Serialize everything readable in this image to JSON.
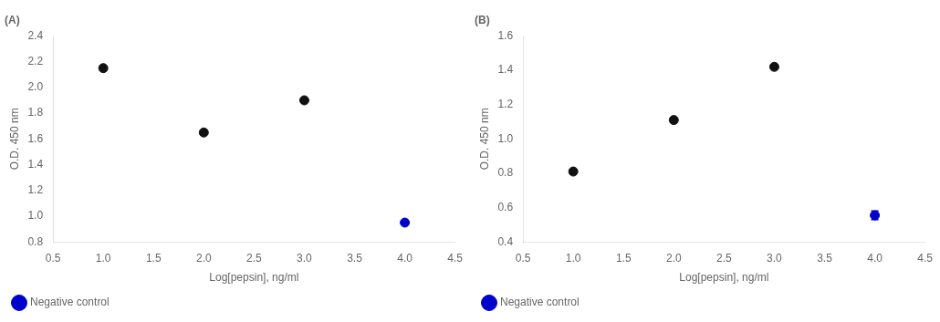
{
  "chart_data": [
    {
      "type": "scatter",
      "title": "(A)",
      "x_label": "Log[pepsin], ng/ml",
      "y_label": "O.D. 450 nm",
      "series": [
        {
          "color": "#111111",
          "x": [
            1.0,
            2.0,
            3.0
          ],
          "values": [
            2.15,
            1.65,
            1.9
          ]
        },
        {
          "name": "Negative control",
          "color": "#0000cc",
          "x": [
            4.0
          ],
          "values": [
            0.95
          ]
        }
      ],
      "xlim": [
        0.5,
        4.5
      ],
      "xticks": [
        0.5,
        {
          "value": 1.0,
          "label": "1.0"
        },
        1.5,
        {
          "value": 2.0,
          "label": "2.0"
        },
        2.5,
        {
          "value": 3.0,
          "label": "3.0"
        },
        3.5,
        {
          "value": 4.0,
          "label": "4.0"
        },
        4.5
      ],
      "ylim": [
        0.8,
        2.4
      ],
      "yticks": [
        0.8,
        {
          "value": 1.0,
          "label": "1.0"
        },
        1.2,
        1.4,
        1.6,
        1.8,
        {
          "value": 2.0,
          "label": "2.0"
        },
        2.2,
        2.4
      ],
      "grid": false,
      "legend": "lower left"
    },
    {
      "type": "scatter",
      "title": "(B)",
      "x_label": "Log[pepsin], ng/ml",
      "y_label": "O.D. 450 nm",
      "series": [
        {
          "color": "#111111",
          "x": [
            1.0,
            2.0,
            3.0
          ],
          "values": [
            0.81,
            1.11,
            1.42
          ]
        },
        {
          "name": "Negative control",
          "color": "#0000cc",
          "x": [
            4.0
          ],
          "values": [
            0.555
          ],
          "yerr": [
            0.025
          ]
        }
      ],
      "xlim": [
        0.5,
        4.5
      ],
      "xticks": [
        0.5,
        {
          "value": 1.0,
          "label": "1.0"
        },
        1.5,
        {
          "value": 2.0,
          "label": "2.0"
        },
        2.5,
        {
          "value": 3.0,
          "label": "3.0"
        },
        3.5,
        {
          "value": 4.0,
          "label": "4.0"
        },
        4.5
      ],
      "ylim": [
        0.4,
        1.6
      ],
      "yticks": [
        0.4,
        0.6,
        0.8,
        {
          "value": 1.0,
          "label": "1.0"
        },
        1.2,
        1.4,
        1.6
      ],
      "grid": false,
      "legend": "lower left"
    }
  ]
}
